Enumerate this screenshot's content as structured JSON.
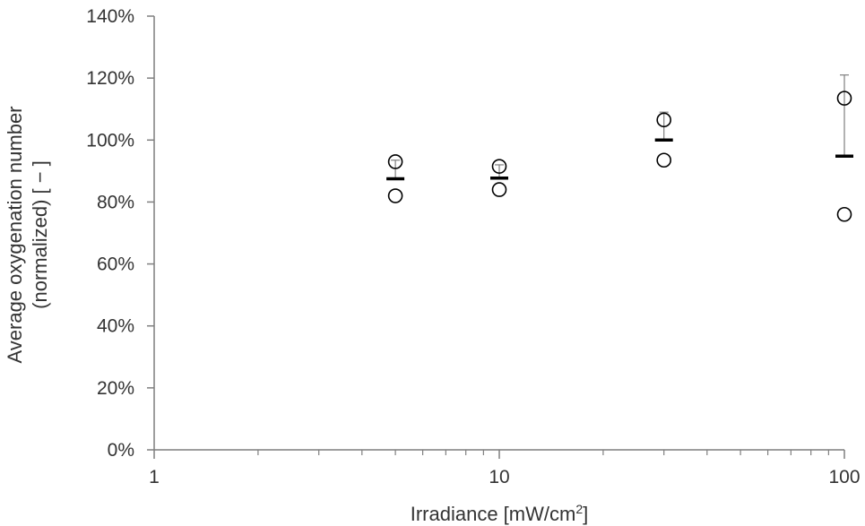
{
  "chart_data": {
    "type": "scatter",
    "title": "",
    "xlabel": {
      "main": "Irradiance [mW/cm",
      "sup": "2",
      "end": "]"
    },
    "ylabel": [
      "Average oxygenation number",
      "(normalized)  [ − ]"
    ],
    "x_scale": "log",
    "xlim": [
      1,
      100
    ],
    "ylim": [
      0,
      1.4
    ],
    "x_ticks": [
      1,
      10,
      100
    ],
    "x_tick_labels": [
      "1",
      "10",
      "100"
    ],
    "y_ticks": [
      0,
      0.2,
      0.4,
      0.6,
      0.8,
      1.0,
      1.2,
      1.4
    ],
    "y_tick_labels": [
      "0%",
      "20%",
      "40%",
      "60%",
      "80%",
      "100%",
      "120%",
      "140%"
    ],
    "grid": false,
    "legend": "none",
    "colors": {
      "axis": "#7f7f7f",
      "marker": "#000000",
      "errorbar": "#7f7f7f",
      "text": "#333333"
    },
    "groups": [
      {
        "x": 5,
        "samples": [
          0.93,
          0.82
        ],
        "mean": 0.875,
        "error_upper": 0.935
      },
      {
        "x": 10,
        "samples": [
          0.915,
          0.84
        ],
        "mean": 0.877,
        "error_upper": 0.92
      },
      {
        "x": 30,
        "samples": [
          1.065,
          0.935
        ],
        "mean": 1.0,
        "error_upper": 1.09
      },
      {
        "x": 100,
        "samples": [
          1.135,
          0.76
        ],
        "mean": 0.948,
        "error_upper": 1.21
      }
    ]
  }
}
